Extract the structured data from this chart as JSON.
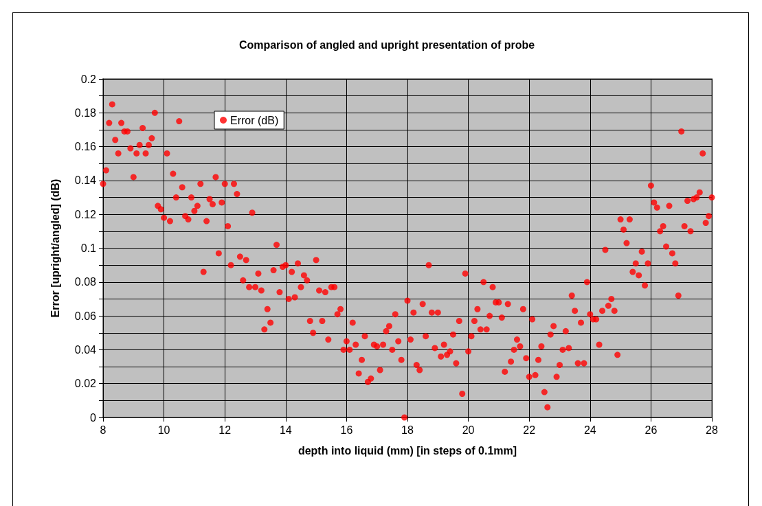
{
  "chart_data": {
    "type": "scatter",
    "title": "Comparison of angled and upright presentation of probe",
    "xlabel": "depth into liquid (mm) [in steps of 0.1mm]",
    "ylabel": "Error [upright/angled] (dB)",
    "x": [
      8.0,
      8.1,
      8.2,
      8.3,
      8.4,
      8.5,
      8.6,
      8.7,
      8.8,
      8.9,
      9.0,
      9.1,
      9.2,
      9.3,
      9.4,
      9.5,
      9.6,
      9.7,
      9.8,
      9.9,
      10.0,
      10.1,
      10.2,
      10.3,
      10.4,
      10.5,
      10.6,
      10.7,
      10.8,
      10.9,
      11.0,
      11.1,
      11.2,
      11.3,
      11.4,
      11.5,
      11.6,
      11.7,
      11.8,
      11.9,
      12.0,
      12.1,
      12.2,
      12.3,
      12.4,
      12.5,
      12.6,
      12.7,
      12.8,
      12.9,
      13.0,
      13.1,
      13.2,
      13.3,
      13.4,
      13.5,
      13.6,
      13.7,
      13.8,
      13.9,
      14.0,
      14.1,
      14.2,
      14.3,
      14.4,
      14.5,
      14.6,
      14.7,
      14.8,
      14.9,
      15.0,
      15.1,
      15.2,
      15.3,
      15.4,
      15.5,
      15.6,
      15.7,
      15.8,
      15.9,
      16.0,
      16.1,
      16.2,
      16.3,
      16.4,
      16.5,
      16.6,
      16.7,
      16.8,
      16.9,
      17.0,
      17.1,
      17.2,
      17.3,
      17.4,
      17.5,
      17.6,
      17.7,
      17.8,
      17.9,
      18.0,
      18.1,
      18.2,
      18.3,
      18.4,
      18.5,
      18.6,
      18.7,
      18.8,
      18.9,
      19.0,
      19.1,
      19.2,
      19.3,
      19.4,
      19.5,
      19.6,
      19.7,
      19.8,
      19.9,
      20.0,
      20.1,
      20.2,
      20.3,
      20.4,
      20.5,
      20.6,
      20.7,
      20.8,
      20.9,
      21.0,
      21.1,
      21.2,
      21.3,
      21.4,
      21.5,
      21.6,
      21.7,
      21.8,
      21.9,
      22.0,
      22.1,
      22.2,
      22.3,
      22.4,
      22.5,
      22.6,
      22.7,
      22.8,
      22.9,
      23.0,
      23.1,
      23.2,
      23.3,
      23.4,
      23.5,
      23.6,
      23.7,
      23.8,
      23.9,
      24.0,
      24.1,
      24.2,
      24.3,
      24.4,
      24.5,
      24.6,
      24.7,
      24.8,
      24.9,
      25.0,
      25.1,
      25.2,
      25.3,
      25.4,
      25.5,
      25.6,
      25.7,
      25.8,
      25.9,
      26.0,
      26.1,
      26.2,
      26.3,
      26.4,
      26.5,
      26.6,
      26.7,
      26.8,
      26.9,
      27.0,
      27.1,
      27.2,
      27.3,
      27.4,
      27.5,
      27.6,
      27.7,
      27.8,
      27.9,
      28.0
    ],
    "series": [
      {
        "name": "Error (dB)",
        "color": "#ff0000",
        "values": [
          0.138,
          0.146,
          0.174,
          0.185,
          0.164,
          0.156,
          0.174,
          0.169,
          0.169,
          0.159,
          0.142,
          0.156,
          0.161,
          0.171,
          0.156,
          0.161,
          0.165,
          0.18,
          0.125,
          0.123,
          0.118,
          0.156,
          0.116,
          0.144,
          0.13,
          0.175,
          0.136,
          0.119,
          0.117,
          0.13,
          0.122,
          0.125,
          0.138,
          0.086,
          0.116,
          0.129,
          0.126,
          0.142,
          0.097,
          0.127,
          0.138,
          0.113,
          0.09,
          0.138,
          0.132,
          0.095,
          0.081,
          0.093,
          0.077,
          0.121,
          0.077,
          0.085,
          0.075,
          0.052,
          0.064,
          0.056,
          0.087,
          0.102,
          0.074,
          0.089,
          0.09,
          0.07,
          0.086,
          0.071,
          0.091,
          0.077,
          0.084,
          0.081,
          0.057,
          0.05,
          0.093,
          0.075,
          0.057,
          0.074,
          0.046,
          0.077,
          0.077,
          0.061,
          0.064,
          0.04,
          0.045,
          0.04,
          0.056,
          0.043,
          0.026,
          0.034,
          0.048,
          0.021,
          0.023,
          0.043,
          0.042,
          0.028,
          0.043,
          0.051,
          0.054,
          0.04,
          0.061,
          0.045,
          0.034,
          0.0,
          0.069,
          0.046,
          0.062,
          0.031,
          0.028,
          0.067,
          0.048,
          0.09,
          0.062,
          0.041,
          0.062,
          0.036,
          0.043,
          0.037,
          0.039,
          0.049,
          0.032,
          0.057,
          0.014,
          0.085,
          0.039,
          0.048,
          0.057,
          0.064,
          0.052,
          0.08,
          0.052,
          0.06,
          0.077,
          0.068,
          0.068,
          0.059,
          0.027,
          0.067,
          0.033,
          0.04,
          0.046,
          0.042,
          0.064,
          0.035,
          0.024,
          0.058,
          0.025,
          0.034,
          0.042,
          0.015,
          0.006,
          0.049,
          0.054,
          0.024,
          0.031,
          0.04,
          0.051,
          0.041,
          0.072,
          0.063,
          0.032,
          0.056,
          0.032,
          0.08,
          0.061,
          0.058,
          0.058,
          0.043,
          0.063,
          0.099,
          0.066,
          0.07,
          0.063,
          0.037,
          0.117,
          0.111,
          0.103,
          0.117,
          0.086,
          0.091,
          0.084,
          0.098,
          0.078,
          0.091,
          0.137,
          0.127,
          0.124,
          0.11,
          0.113,
          0.101,
          0.125,
          0.097,
          0.091,
          0.072,
          0.169,
          0.113,
          0.128,
          0.11,
          0.129,
          0.13,
          0.133,
          0.156,
          0.115,
          0.119,
          0.13
        ]
      }
    ],
    "xlim": [
      8,
      28
    ],
    "xticks": [
      8,
      10,
      12,
      14,
      16,
      18,
      20,
      22,
      24,
      26,
      28
    ],
    "ylim": [
      0,
      0.2
    ],
    "yticks": [
      0,
      {
        "value": 0.01,
        "label": null
      },
      0.02,
      {
        "value": 0.03,
        "label": null
      },
      0.04,
      {
        "value": 0.05,
        "label": null
      },
      0.06,
      {
        "value": 0.07,
        "label": null
      },
      0.08,
      {
        "value": 0.09,
        "label": null
      },
      0.1,
      {
        "value": 0.11,
        "label": null
      },
      0.12,
      {
        "value": 0.13,
        "label": null
      },
      0.14,
      {
        "value": 0.15,
        "label": null
      },
      0.16,
      {
        "value": 0.17,
        "label": null
      },
      0.18,
      {
        "value": 0.19,
        "label": null
      },
      0.2
    ],
    "grid": true,
    "legend": "top left",
    "marker": "circle"
  }
}
